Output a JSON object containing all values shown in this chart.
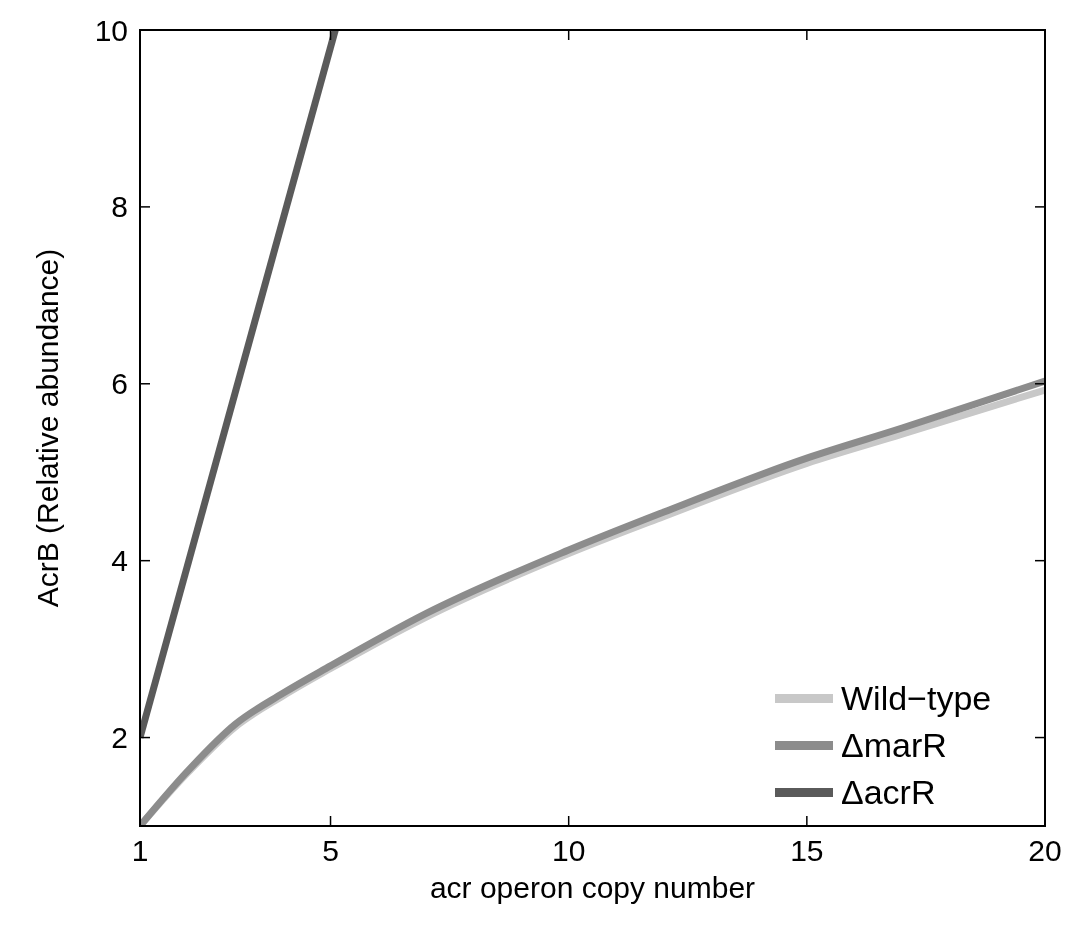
{
  "chart_data": {
    "type": "line",
    "xlabel": "acr operon copy number",
    "ylabel": "AcrB (Relative abundance)",
    "xlim": [
      1,
      20
    ],
    "xticks": [
      1,
      5,
      10,
      15,
      20
    ],
    "ylim": [
      1,
      10
    ],
    "yticks": [
      2,
      4,
      6,
      8,
      10
    ],
    "grid": false,
    "legend": "bottom right",
    "marker": "none",
    "line_style": "solid",
    "series": [
      {
        "name": "Wild−type",
        "color": "#c8c8c8",
        "x": [
          1,
          2,
          3,
          4,
          5,
          7,
          10,
          12,
          15,
          17,
          20
        ],
        "values": [
          1.0,
          1.6,
          2.12,
          2.47,
          2.78,
          3.36,
          4.08,
          4.5,
          5.1,
          5.43,
          5.93
        ]
      },
      {
        "name": "ΔmarR",
        "color": "#8c8c8c",
        "x": [
          1,
          2,
          3,
          4,
          5,
          7,
          10,
          12,
          15,
          17,
          20
        ],
        "values": [
          1.0,
          1.62,
          2.15,
          2.5,
          2.81,
          3.4,
          4.12,
          4.55,
          5.16,
          5.5,
          6.03
        ]
      },
      {
        "name": "ΔacrR",
        "color": "#5a5a5a",
        "x": [
          1,
          5.1
        ],
        "values": [
          2,
          10
        ]
      }
    ]
  }
}
